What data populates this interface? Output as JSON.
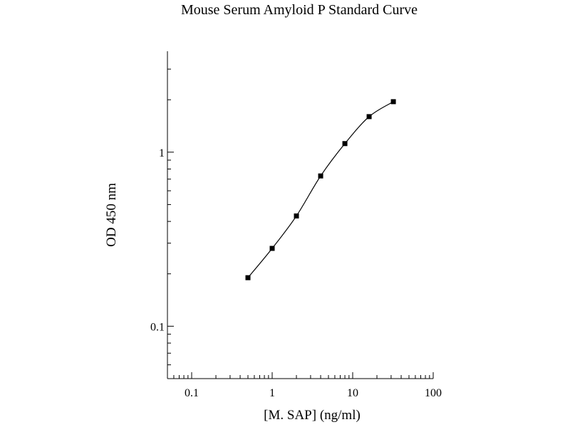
{
  "chart_data": {
    "type": "scatter",
    "title": "Mouse Serum Amyloid P Standard Curve",
    "xlabel": "[M. SAP] (ng/ml)",
    "ylabel": "OD 450 nm",
    "x_scale": "log",
    "y_scale": "log",
    "xlim": [
      0.05,
      100
    ],
    "ylim": [
      0.05,
      3.8
    ],
    "x_tick_labels": [
      {
        "value": 0.1,
        "label": "0.1"
      },
      {
        "value": 1,
        "label": "1"
      },
      {
        "value": 10,
        "label": "10"
      },
      {
        "value": 100,
        "label": "100"
      }
    ],
    "y_tick_labels": [
      {
        "value": 0.1,
        "label": "0.1"
      },
      {
        "value": 1,
        "label": "1"
      }
    ],
    "grid": false,
    "legend": "none",
    "series": [
      {
        "marker": "square",
        "line": "smooth",
        "color": "#000000",
        "x": [
          0.5,
          1,
          2,
          4,
          8,
          16,
          32
        ],
        "y": [
          0.19,
          0.28,
          0.43,
          0.73,
          1.12,
          1.6,
          1.95
        ]
      }
    ]
  }
}
